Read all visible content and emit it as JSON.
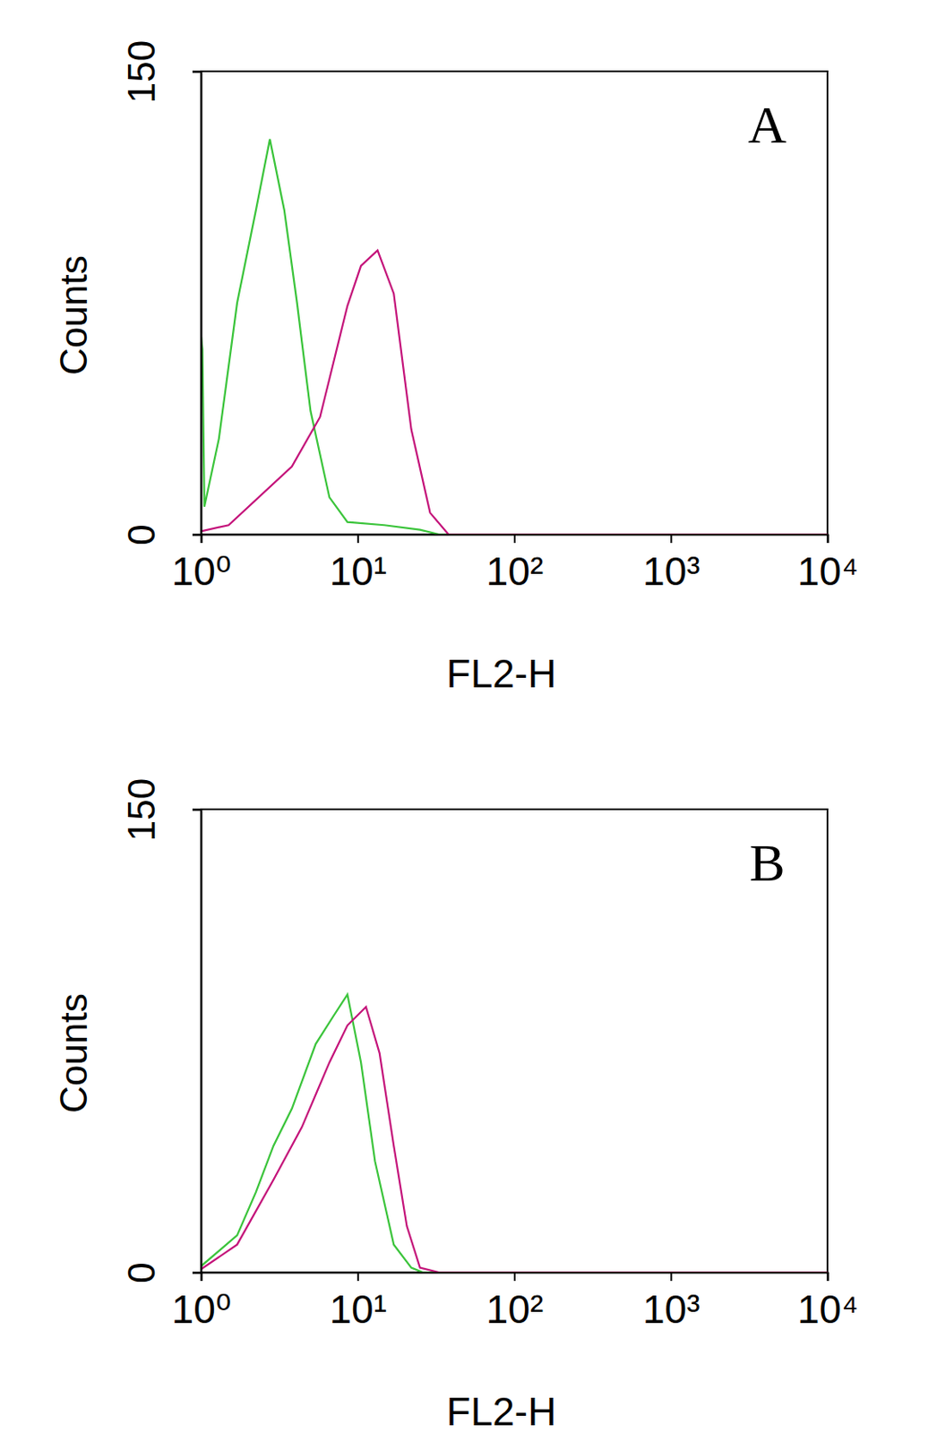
{
  "chart_data": [
    {
      "type": "line",
      "annotation": "A",
      "x_label": "FL2-H",
      "y_label": "Counts",
      "log": "x",
      "xlim": [
        1,
        10000
      ],
      "xticks": [
        {
          "value": 1,
          "label": "10⁰"
        },
        {
          "value": 10,
          "label": "10¹"
        },
        {
          "value": 100,
          "label": "10²"
        },
        {
          "value": 1000,
          "label": "10³"
        },
        {
          "value": 10000,
          "label": "10⁴"
        }
      ],
      "ylim": [
        0,
        150
      ],
      "yticks": [
        0,
        150
      ],
      "series": [
        {
          "color": "#3bc43b",
          "x": [
            1,
            1.02,
            1.05,
            1.3,
            1.7,
            2.24,
            2.75,
            3.4,
            4.1,
            5.0,
            6.6,
            8.6,
            14.8,
            25,
            33,
            10000
          ],
          "values": [
            64,
            60,
            9,
            31,
            75,
            105,
            128,
            105,
            75,
            40,
            12,
            4,
            3,
            1.5,
            0,
            0
          ]
        },
        {
          "color": "#c4137a",
          "x": [
            1,
            1.5,
            3.8,
            5.75,
            8.6,
            10.5,
            13.4,
            17,
            22,
            29,
            38,
            10000
          ],
          "values": [
            1,
            3,
            22,
            38,
            74,
            87,
            92,
            78,
            34,
            7,
            0,
            0
          ]
        }
      ]
    },
    {
      "type": "line",
      "annotation": "B",
      "x_label": "FL2-H",
      "y_label": "Counts",
      "log": "x",
      "xlim": [
        1,
        10000
      ],
      "xticks": [
        {
          "value": 1,
          "label": "10⁰"
        },
        {
          "value": 10,
          "label": "10¹"
        },
        {
          "value": 100,
          "label": "10²"
        },
        {
          "value": 1000,
          "label": "10³"
        },
        {
          "value": 10000,
          "label": "10⁴"
        }
      ],
      "ylim": [
        0,
        150
      ],
      "yticks": [
        0,
        150
      ],
      "series": [
        {
          "color": "#3bc43b",
          "x": [
            1,
            1.7,
            2.24,
            2.9,
            3.8,
            5.4,
            7.0,
            8.6,
            10.5,
            12.9,
            17,
            22,
            26,
            10000
          ],
          "values": [
            2,
            12,
            26,
            41,
            53,
            74,
            83,
            90,
            68,
            36,
            9,
            1.5,
            0,
            0
          ]
        },
        {
          "color": "#c4137a",
          "x": [
            1,
            1.7,
            2.9,
            4.4,
            6.6,
            8.6,
            11.3,
            13.8,
            17,
            20.6,
            25,
            33,
            10000
          ],
          "values": [
            1,
            9,
            30,
            47,
            68,
            80,
            86,
            71,
            41,
            15,
            1.5,
            0,
            0
          ]
        }
      ]
    }
  ]
}
